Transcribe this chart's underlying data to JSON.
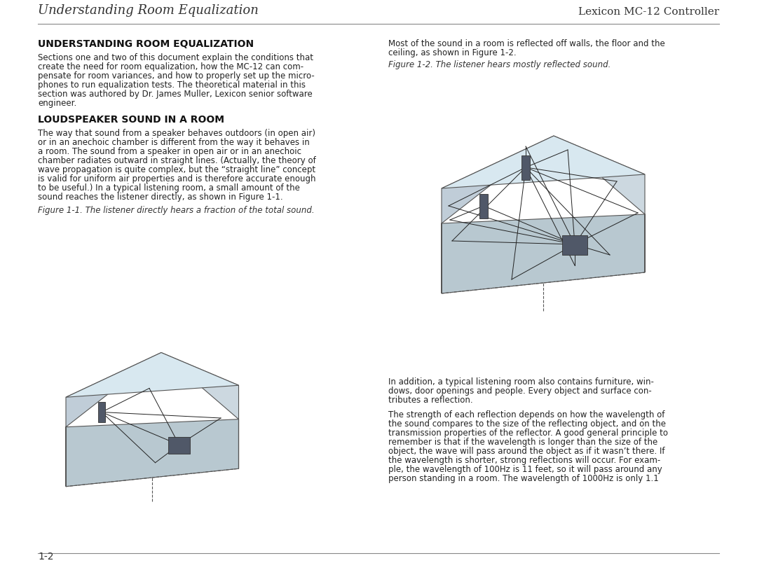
{
  "page_bg": "#ffffff",
  "header_left": "Understanding Room Equalization",
  "header_right": "Lexicon MC-12 Controller",
  "header_color": "#333333",
  "section1_title": "UNDERSTANDING ROOM EQUALIZATION",
  "section1_body": "Sections one and two of this document explain the conditions that\ncreate the need for room equalization, how the MC-12 can com-\npensate for room variances, and how to properly set up the micro-\nphones to run equalization tests. The theoretical material in this\nsection was authored by Dr. James Muller, Lexicon senior software\nengineer.",
  "section2_title": "LOUDSPEAKER SOUND IN A ROOM",
  "section2_body": "The way that sound from a speaker behaves outdoors (in open air)\nor in an anechoic chamber is different from the way it behaves in\na room. The sound from a speaker in open air or in an anechoic\nchamber radiates outward in straight lines. (Actually, the theory of\nwave propagation is quite complex, but the “straight line” concept\nis valid for uniform air properties and is therefore accurate enough\nto be useful.) In a typical listening room, a small amount of the\nsound reaches the listener directly, as shown in Figure 1-1.",
  "fig1_caption": "Figure 1-1. The listener directly hears a fraction of the total sound.",
  "right_para1": "Most of the sound in a room is reflected off walls, the floor and the\nceiling, as shown in Figure 1-2.",
  "fig2_caption": "Figure 1-2. The listener hears mostly reflected sound.",
  "right_para2": "In addition, a typical listening room also contains furniture, win-\ndows, door openings and people. Every object and surface con-\ntributes a reflection.",
  "right_para3": "The strength of each reflection depends on how the wavelength of\nthe sound compares to the size of the reflecting object, and on the\ntransmission properties of the reflector. A good general principle to\nremember is that if the wavelength is longer than the size of the\nobject, the wave will pass around the object as if it wasn’t there. If\nthe wavelength is shorter, strong reflections will occur. For exam-\nple, the wavelength of 100Hz is 11 feet, so it will pass around any\nperson standing in a room. The wavelength of 1000Hz is only 1.1",
  "footer_text": "1-2",
  "room_wall_color": "#c8d8e0",
  "room_floor_color": "#b0c4cc",
  "room_line_color": "#555555",
  "speaker_color": "#606878",
  "listener_color": "#505060"
}
